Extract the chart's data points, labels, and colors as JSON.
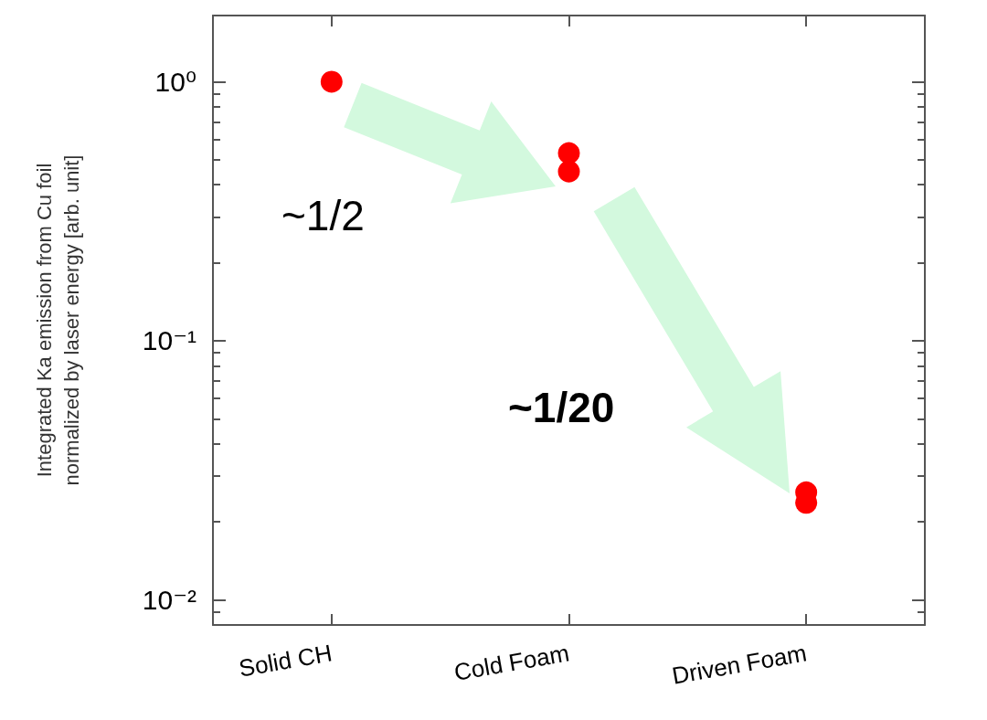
{
  "chart_data": {
    "type": "scatter",
    "ylabel": "Integrated Ka emission from Cu foil\nnormalized by laser energy [arb. unit]",
    "categories": [
      "Solid CH",
      "Cold Foam",
      "Driven Foam"
    ],
    "series": [
      {
        "color": "#ff0000",
        "x": [
          "Solid CH",
          "Cold Foam",
          "Cold Foam",
          "Driven Foam",
          "Driven Foam"
        ],
        "values": [
          1.0,
          0.53,
          0.45,
          0.026,
          0.0237
        ]
      }
    ],
    "log": "y",
    "ylim": [
      0.008,
      1.8
    ],
    "yticks": [
      {
        "value": 0.01,
        "label": "10⁻²"
      },
      {
        "value": 0.1,
        "label": "10⁻¹"
      },
      {
        "value": 1,
        "label": "10⁰"
      }
    ],
    "marker": "circle",
    "grid": false,
    "annotations": [
      "~1/2",
      "~1/20"
    ]
  }
}
